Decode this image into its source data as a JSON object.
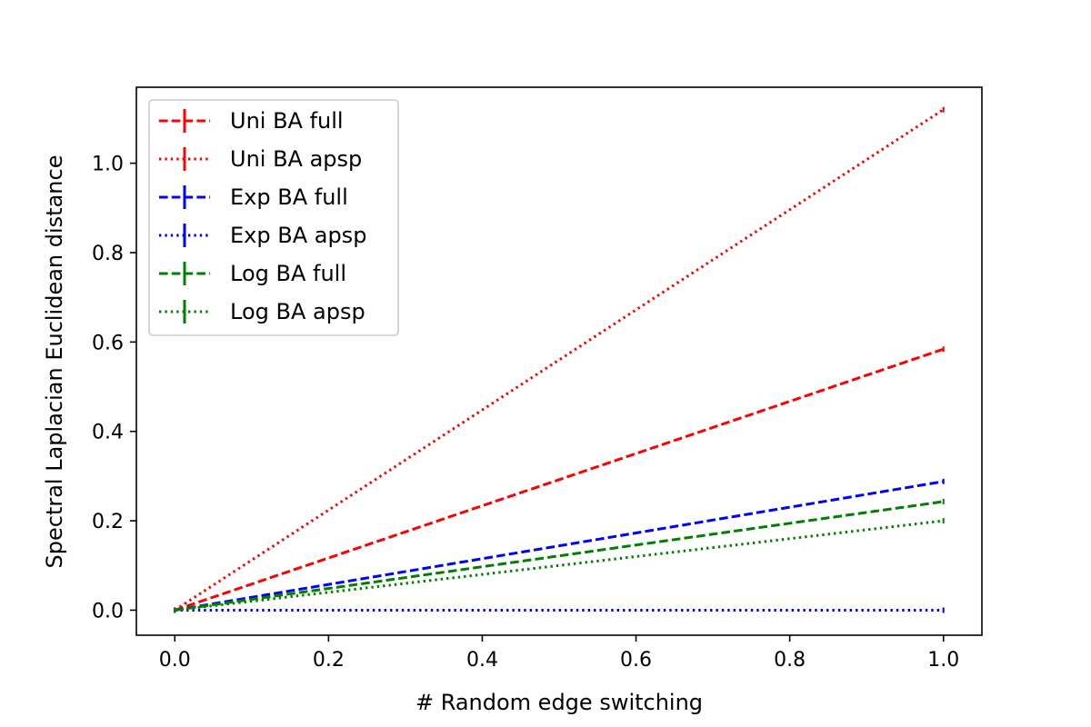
{
  "chart_data": {
    "type": "line",
    "title": "",
    "xlabel": "# Random edge switching",
    "ylabel": "Spectral Laplacian Euclidean distance",
    "xlim": [
      -0.05,
      1.05
    ],
    "ylim": [
      -0.056,
      1.17
    ],
    "x_ticks": [
      "0.0",
      "0.2",
      "0.4",
      "0.6",
      "0.8",
      "1.0"
    ],
    "y_ticks": [
      "0.0",
      "0.2",
      "0.4",
      "0.6",
      "0.8",
      "1.0"
    ],
    "grid": false,
    "legend_position": "top-left",
    "x": [
      0.0,
      1.0
    ],
    "series": [
      {
        "name": "Uni BA full",
        "values": [
          0.0,
          0.584
        ],
        "color": "#ff0000",
        "linestyle": "dashed"
      },
      {
        "name": "Uni BA apsp",
        "values": [
          0.0,
          1.12
        ],
        "color": "#ff0000",
        "linestyle": "dotted"
      },
      {
        "name": "Exp BA full",
        "values": [
          0.0,
          0.288
        ],
        "color": "#0000ff",
        "linestyle": "dashed"
      },
      {
        "name": "Exp BA apsp",
        "values": [
          0.0,
          0.0
        ],
        "color": "#0000ff",
        "linestyle": "dotted"
      },
      {
        "name": "Log BA full",
        "values": [
          0.0,
          0.243
        ],
        "color": "#008000",
        "linestyle": "dashed"
      },
      {
        "name": "Log BA apsp",
        "values": [
          0.0,
          0.2
        ],
        "color": "#008000",
        "linestyle": "dotted"
      }
    ]
  }
}
